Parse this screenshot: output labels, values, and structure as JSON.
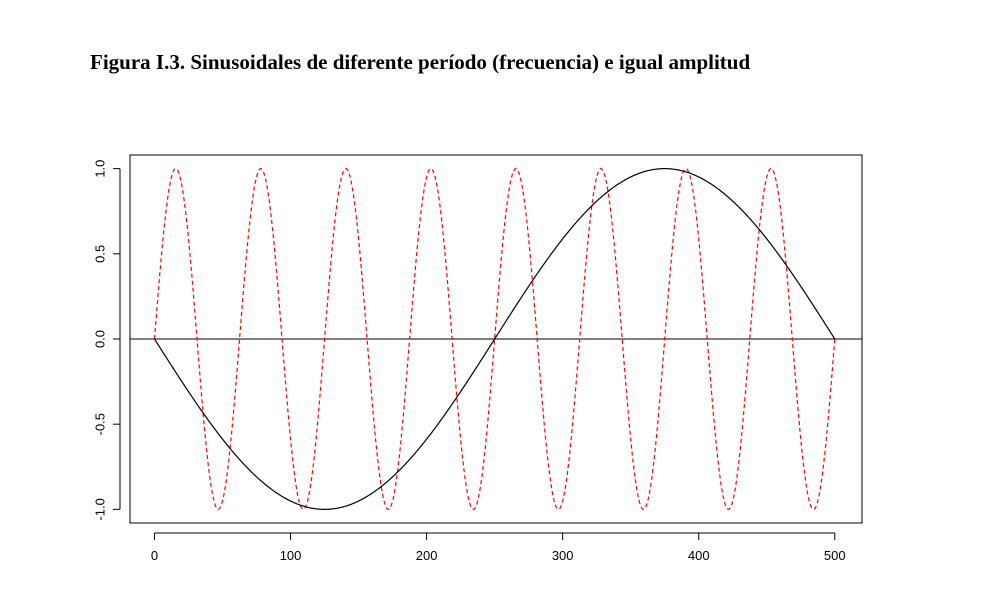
{
  "figure_title": "Figura I.3. Sinusoidales de diferente período (frecuencia) e igual amplitud",
  "chart_data": {
    "type": "line",
    "title": "",
    "xlabel": "",
    "ylabel": "",
    "xlim": [
      -18,
      520
    ],
    "ylim": [
      -1.08,
      1.08
    ],
    "x_ticks": [
      0,
      100,
      200,
      300,
      400,
      500
    ],
    "x_tick_labels": [
      "0",
      "100",
      "200",
      "300",
      "400",
      "500"
    ],
    "y_ticks": [
      -1.0,
      -0.5,
      0.0,
      0.5,
      1.0
    ],
    "y_tick_labels": [
      "-1.0",
      "-0.5",
      "0.0",
      "0.5",
      "1.0"
    ],
    "grid": false,
    "horizontal_reference_line": 0.0,
    "series": [
      {
        "style": "solid",
        "color": "#000000",
        "function": "y = sin(2*pi*x/500 + pi), x in [0, 500]",
        "period": 500,
        "amplitude": 1.0,
        "x_range": [
          0,
          500
        ]
      },
      {
        "style": "dashed",
        "color": "#ff0000",
        "function": "y = sin(2*pi*x/62.5), x in [0, 500]",
        "period": 62.5,
        "amplitude": 1.0,
        "x_range": [
          0,
          500
        ]
      }
    ]
  }
}
